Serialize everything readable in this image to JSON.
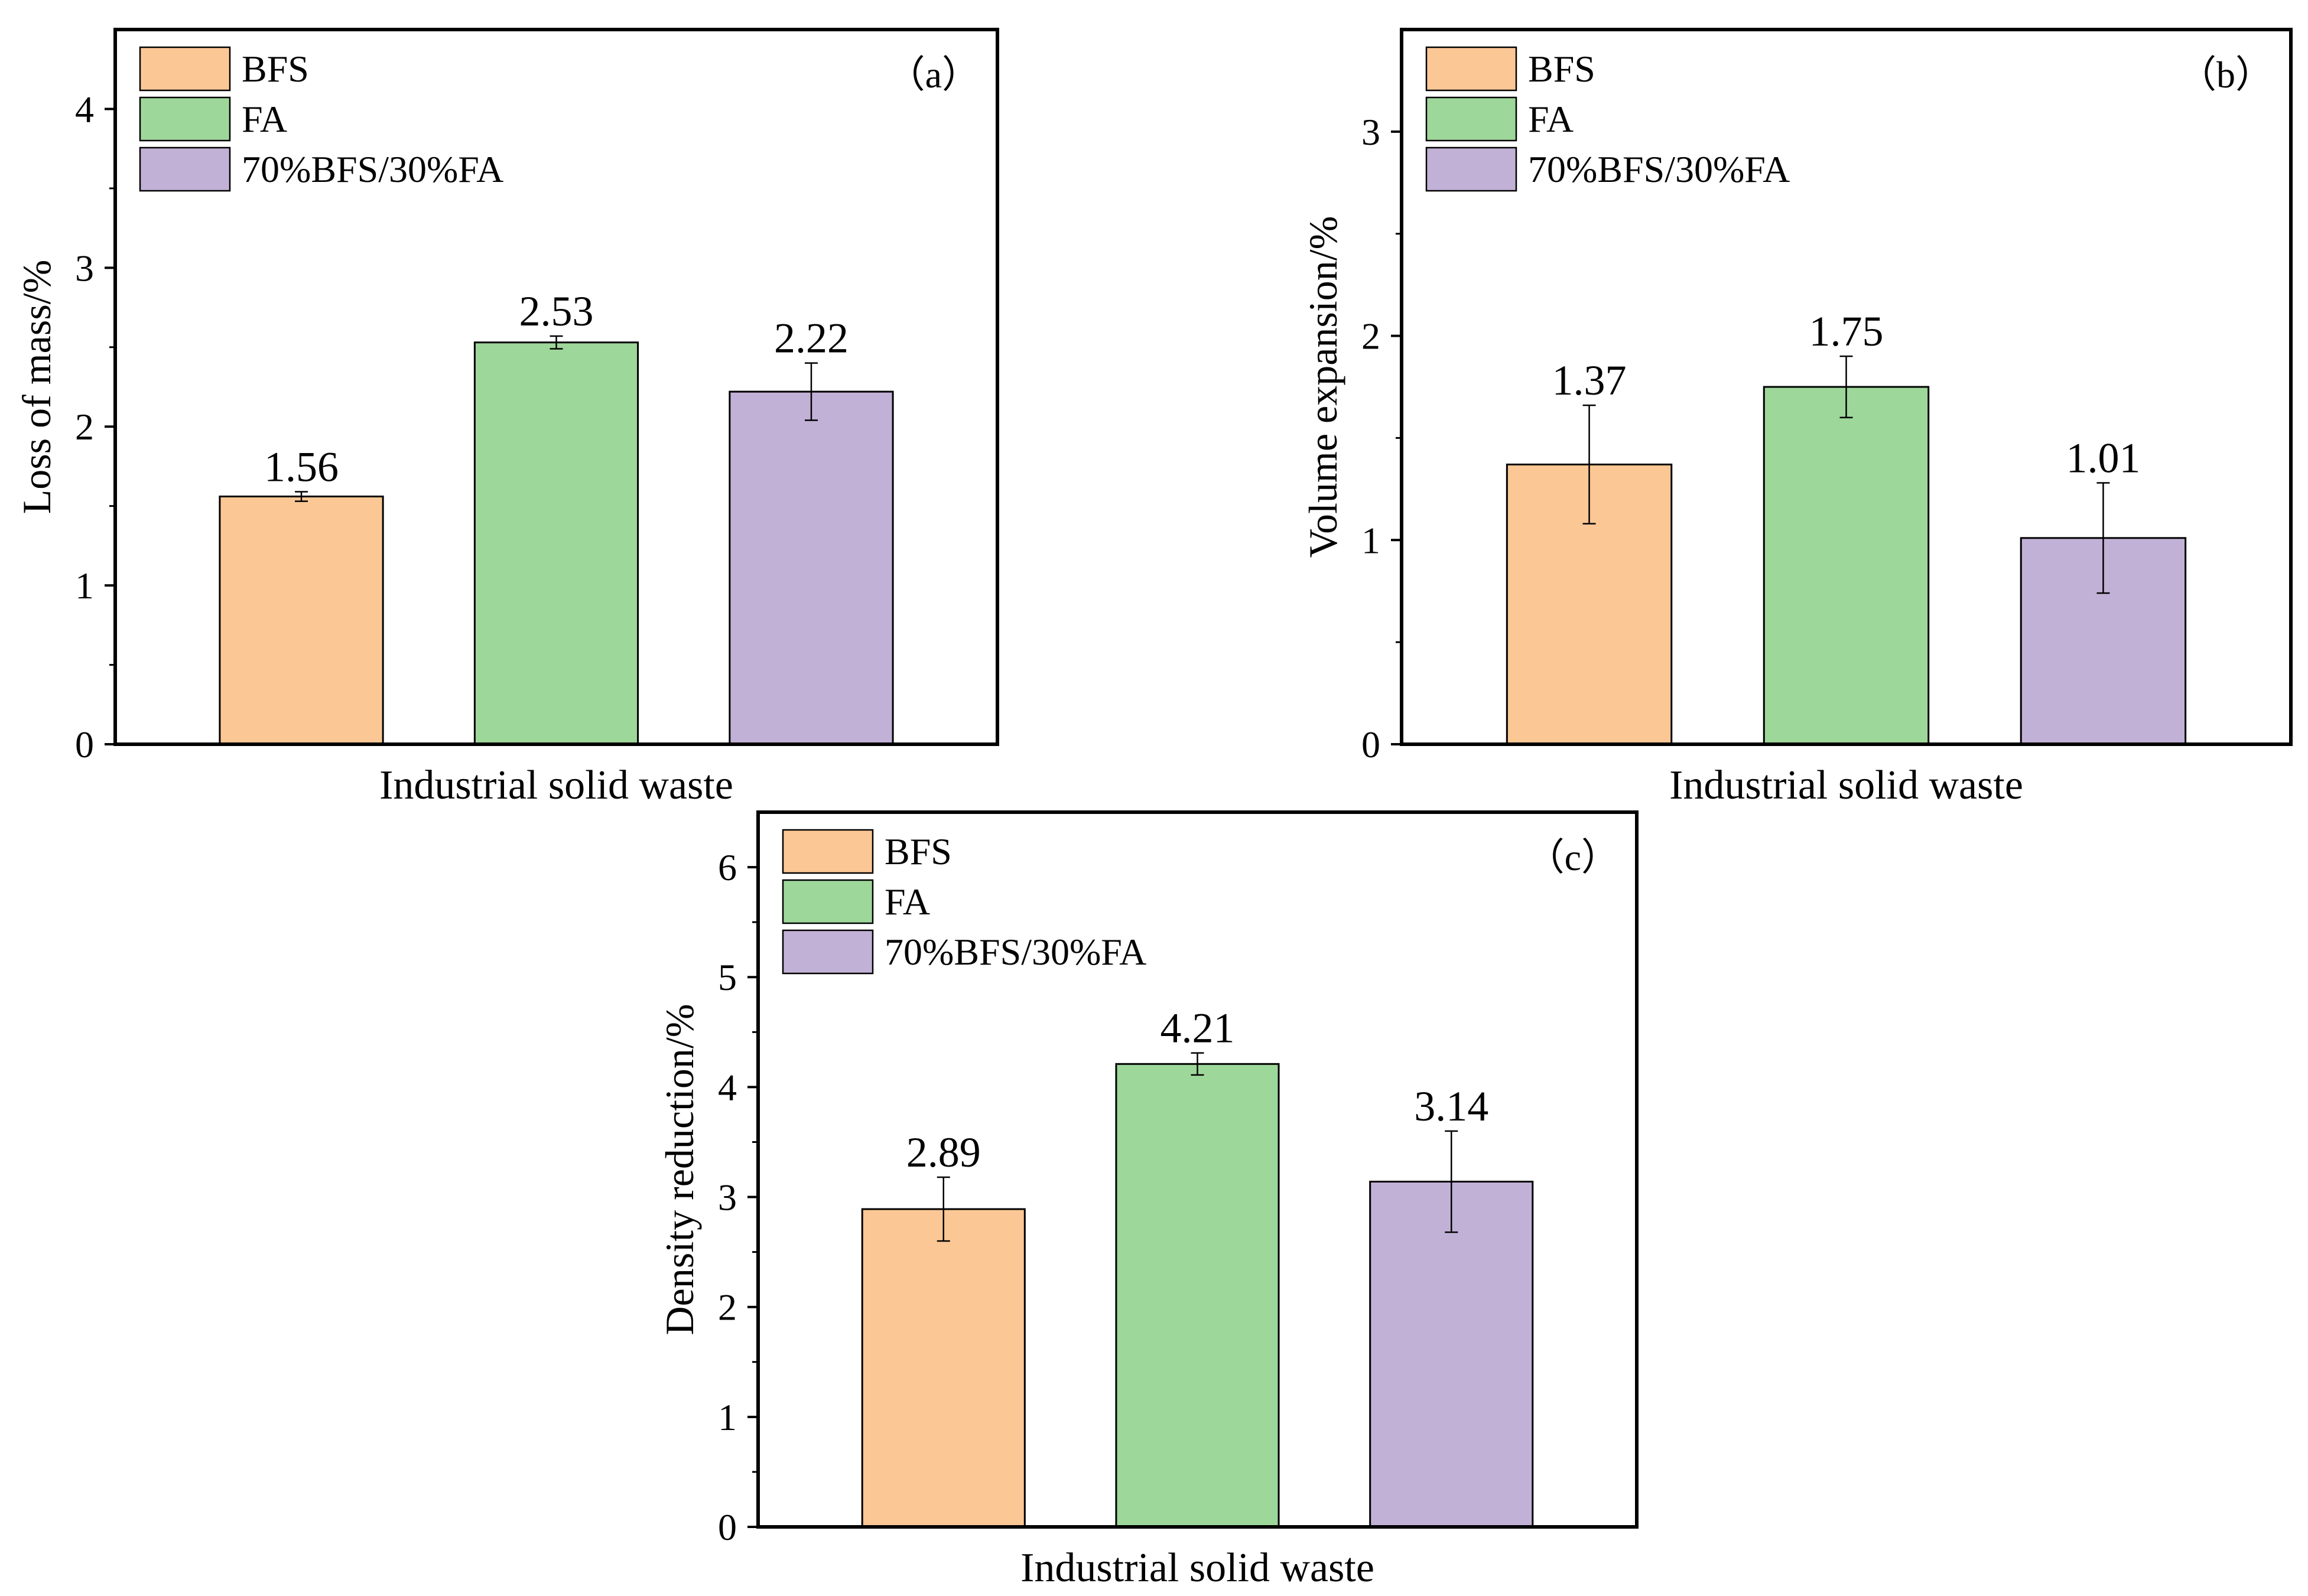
{
  "colors": {
    "BFS": "#FBC795",
    "FA": "#9ED79A",
    "70%BFS/30%FA": "#C2B1D6",
    "axis": "#000000"
  },
  "chart_data": [
    {
      "type": "bar",
      "panel_label": "（a）",
      "xlabel": "Industrial solid waste",
      "ylabel": "Loss of mass/%",
      "ylim": [
        0,
        4.5
      ],
      "yticks": [
        0,
        1,
        2,
        3,
        4
      ],
      "categories": [
        "BFS",
        "FA",
        "70%BFS/30%FA"
      ],
      "values": [
        1.56,
        2.53,
        2.22
      ],
      "errors": [
        0.03,
        0.04,
        0.18
      ],
      "value_labels": [
        "1.56",
        "2.53",
        "2.22"
      ],
      "legend": [
        "BFS",
        "FA",
        "70%BFS/30%FA"
      ],
      "legend_position": "top-left"
    },
    {
      "type": "bar",
      "panel_label": "（b）",
      "xlabel": "Industrial solid waste",
      "ylabel": "Volume expansion/%",
      "ylim": [
        0,
        3.5
      ],
      "yticks": [
        0,
        1,
        2,
        3
      ],
      "categories": [
        "BFS",
        "FA",
        "70%BFS/30%FA"
      ],
      "values": [
        1.37,
        1.75,
        1.01
      ],
      "errors": [
        0.29,
        0.15,
        0.27
      ],
      "value_labels": [
        "1.37",
        "1.75",
        "1.01"
      ],
      "legend": [
        "BFS",
        "FA",
        "70%BFS/30%FA"
      ],
      "legend_position": "top-left"
    },
    {
      "type": "bar",
      "panel_label": "（c）",
      "xlabel": "Industrial solid waste",
      "ylabel": "Density reduction/%",
      "ylim": [
        0,
        6.5
      ],
      "yticks": [
        0,
        1,
        2,
        3,
        4,
        5,
        6
      ],
      "categories": [
        "BFS",
        "FA",
        "70%BFS/30%FA"
      ],
      "values": [
        2.89,
        4.21,
        3.14
      ],
      "errors": [
        0.29,
        0.1,
        0.46
      ],
      "value_labels": [
        "2.89",
        "4.21",
        "3.14"
      ],
      "legend": [
        "BFS",
        "FA",
        "70%BFS/30%FA"
      ],
      "legend_position": "top-left"
    }
  ]
}
